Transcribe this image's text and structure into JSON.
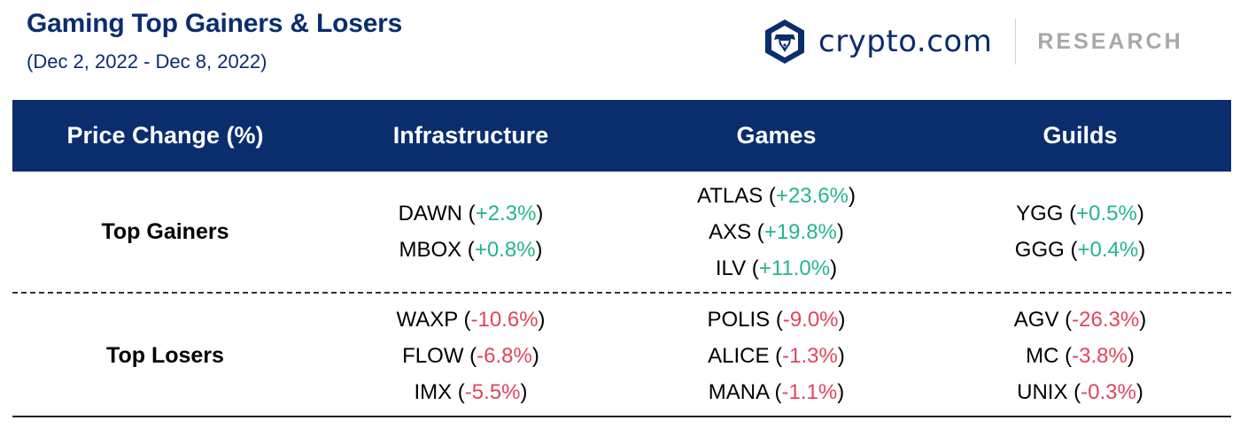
{
  "header": {
    "title": "Gaming Top Gainers & Losers",
    "subtitle": "(Dec 2, 2022 - Dec 8, 2022)",
    "brand": {
      "logo_icon": "crypto-com-lion-shield-icon",
      "name": "crypto.com",
      "section": "RESEARCH"
    }
  },
  "colors": {
    "header_bg": "#0a2d6e",
    "positive": "#24b590",
    "negative": "#e0455b",
    "muted_text": "#a8a8a8"
  },
  "table": {
    "columns": [
      "Price Change (%)",
      "Infrastructure",
      "Games",
      "Guilds"
    ],
    "rows": [
      {
        "label": "Top Gainers",
        "cells": [
          [
            {
              "name": "DAWN",
              "change": "+2.3%"
            },
            {
              "name": "MBOX",
              "change": "+0.8%"
            }
          ],
          [
            {
              "name": "ATLAS",
              "change": "+23.6%"
            },
            {
              "name": "AXS",
              "change": "+19.8%"
            },
            {
              "name": "ILV",
              "change": "+11.0%"
            }
          ],
          [
            {
              "name": "YGG",
              "change": "+0.5%"
            },
            {
              "name": "GGG",
              "change": "+0.4%"
            }
          ]
        ]
      },
      {
        "label": "Top Losers",
        "cells": [
          [
            {
              "name": "WAXP",
              "change": "-10.6%"
            },
            {
              "name": "FLOW",
              "change": "-6.8%"
            },
            {
              "name": "IMX",
              "change": "-5.5%"
            }
          ],
          [
            {
              "name": "POLIS",
              "change": "-9.0%"
            },
            {
              "name": "ALICE",
              "change": "-1.3%"
            },
            {
              "name": "MANA",
              "change": "-1.1%"
            }
          ],
          [
            {
              "name": "AGV",
              "change": "-26.3%"
            },
            {
              "name": "MC",
              "change": "-3.8%"
            },
            {
              "name": "UNIX",
              "change": "-0.3%"
            }
          ]
        ]
      }
    ]
  }
}
